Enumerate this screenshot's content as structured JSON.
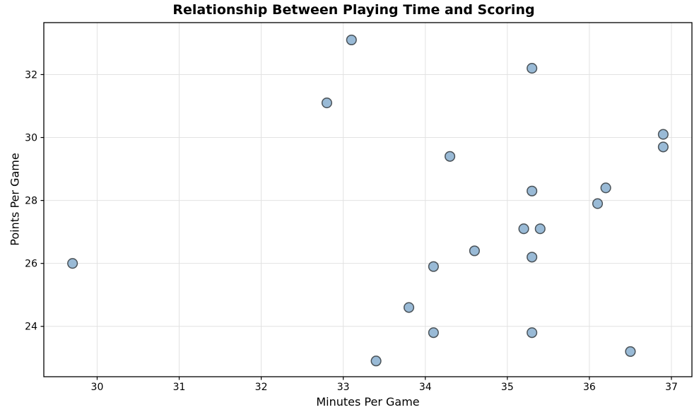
{
  "chart_data": {
    "type": "scatter",
    "title": "Relationship Between Playing Time and Scoring",
    "xlabel": "Minutes Per Game",
    "ylabel": "Points Per Game",
    "xlim": [
      29.35,
      37.25
    ],
    "ylim": [
      22.4,
      33.65
    ],
    "xticks": [
      30,
      31,
      32,
      33,
      34,
      35,
      36,
      37
    ],
    "yticks": [
      24,
      26,
      28,
      30,
      32
    ],
    "grid": true,
    "legend_position": "none",
    "marker": {
      "fill_color": "#99bad6",
      "edge_color": "#4a5258",
      "radius": 6.8,
      "edge_width": 1.5
    },
    "grid_color": "#e2e2e2",
    "spine_color": "#000000",
    "points": [
      {
        "x": 29.7,
        "y": 26.0
      },
      {
        "x": 32.8,
        "y": 31.1
      },
      {
        "x": 33.1,
        "y": 33.1
      },
      {
        "x": 33.4,
        "y": 22.9
      },
      {
        "x": 33.8,
        "y": 24.6
      },
      {
        "x": 34.1,
        "y": 25.9
      },
      {
        "x": 34.1,
        "y": 23.8
      },
      {
        "x": 34.3,
        "y": 29.4
      },
      {
        "x": 34.6,
        "y": 26.4
      },
      {
        "x": 35.2,
        "y": 27.1
      },
      {
        "x": 35.3,
        "y": 32.2
      },
      {
        "x": 35.3,
        "y": 28.3
      },
      {
        "x": 35.3,
        "y": 26.2
      },
      {
        "x": 35.3,
        "y": 23.8
      },
      {
        "x": 35.4,
        "y": 27.1
      },
      {
        "x": 36.1,
        "y": 27.9
      },
      {
        "x": 36.2,
        "y": 28.4
      },
      {
        "x": 36.5,
        "y": 23.2
      },
      {
        "x": 36.9,
        "y": 30.1
      },
      {
        "x": 36.9,
        "y": 29.7
      }
    ]
  }
}
